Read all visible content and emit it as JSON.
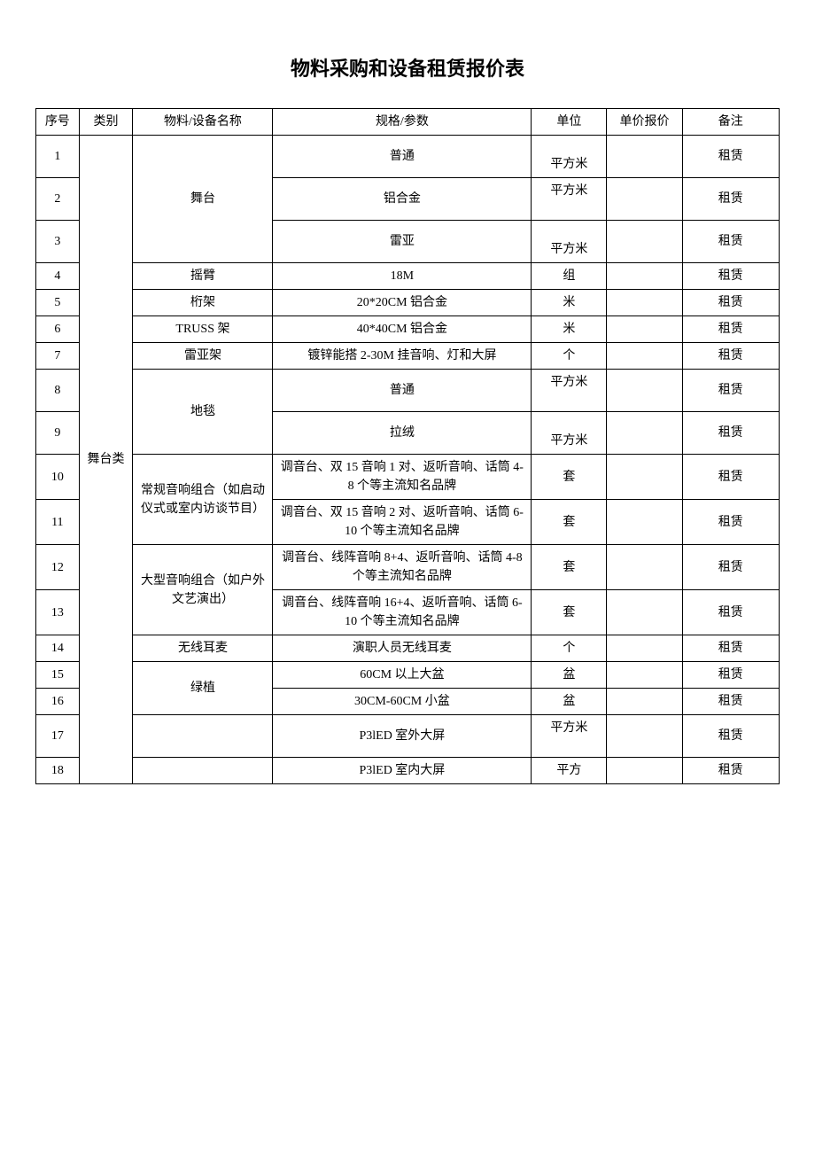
{
  "title": "物料采购和设备租赁报价表",
  "header": {
    "seq": "序号",
    "category": "类别",
    "name": "物料/设备名称",
    "spec": "规格/参数",
    "unit": "单位",
    "price": "单价报价",
    "note": "备注"
  },
  "category_label": "舞台类",
  "names": {
    "stage": "舞台",
    "arm": "摇臂",
    "truss_small": "桁架",
    "truss_big": "TRUSS 架",
    "leiya": "雷亚架",
    "carpet": "地毯",
    "audio_normal": "常规音响组合（如启动仪式或室内访谈节目）",
    "audio_large": "大型音响组合（如户外文艺演出）",
    "wireless": "无线耳麦",
    "plant": "绿植",
    "led1": "",
    "led2": ""
  },
  "rows": [
    {
      "seq": "1",
      "spec": "普通",
      "unit": "平方米",
      "note": "租赁"
    },
    {
      "seq": "2",
      "spec": "铝合金",
      "unit": "平方米",
      "note": "租赁"
    },
    {
      "seq": "3",
      "spec": "雷亚",
      "unit": "平方米",
      "note": "租赁"
    },
    {
      "seq": "4",
      "spec": "18M",
      "unit": "组",
      "note": "租赁"
    },
    {
      "seq": "5",
      "spec": "20*20CM 铝合金",
      "unit": "米",
      "note": "租赁"
    },
    {
      "seq": "6",
      "spec": "40*40CM 铝合金",
      "unit": "米",
      "note": "租赁"
    },
    {
      "seq": "7",
      "spec": "镀锌能搭 2-30M 挂音响、灯和大屏",
      "unit": "个",
      "note": "租赁"
    },
    {
      "seq": "8",
      "spec": "普通",
      "unit": "平方米",
      "note": "租赁"
    },
    {
      "seq": "9",
      "spec": "拉绒",
      "unit": "平方米",
      "note": "租赁"
    },
    {
      "seq": "10",
      "spec": "调音台、双 15 音响 1 对、返听音响、话筒 4-8 个等主流知名品牌",
      "unit": "套",
      "note": "租赁"
    },
    {
      "seq": "11",
      "spec": "调音台、双 15 音响 2 对、返听音响、话筒 6-10 个等主流知名品牌",
      "unit": "套",
      "note": "租赁"
    },
    {
      "seq": "12",
      "spec": "调音台、线阵音响 8+4、返听音响、话筒 4-8 个等主流知名品牌",
      "unit": "套",
      "note": "租赁"
    },
    {
      "seq": "13",
      "spec": "调音台、线阵音响 16+4、返听音响、话筒 6-10 个等主流知名品牌",
      "unit": "套",
      "note": "租赁"
    },
    {
      "seq": "14",
      "spec": "演职人员无线耳麦",
      "unit": "个",
      "note": "租赁"
    },
    {
      "seq": "15",
      "spec": "60CM 以上大盆",
      "unit": "盆",
      "note": "租赁"
    },
    {
      "seq": "16",
      "spec": "30CM-60CM 小盆",
      "unit": "盆",
      "note": "租赁"
    },
    {
      "seq": "17",
      "spec": "P3lED 室外大屏",
      "unit": "平方米",
      "note": "租赁"
    },
    {
      "seq": "18",
      "spec": "P3lED 室内大屏",
      "unit": "平方",
      "note": "租赁"
    }
  ],
  "colors": {
    "background": "#ffffff",
    "border": "#000000",
    "text": "#000000"
  }
}
